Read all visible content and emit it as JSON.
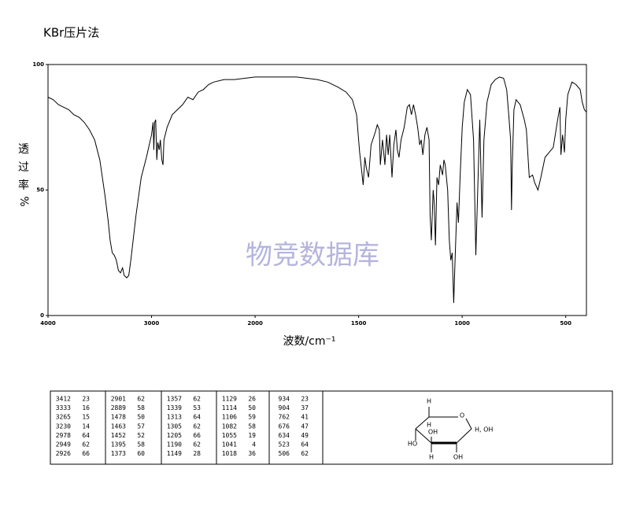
{
  "chart_data": {
    "type": "line",
    "title": "KBr压片法",
    "xlabel": "波数/cm⁻¹",
    "ylabel_chars": [
      "透",
      "过",
      "率"
    ],
    "ylabel_unit": "%",
    "watermark": "物竞数据库",
    "color": "#000000",
    "xlim": [
      4000,
      400
    ],
    "x_scale_break": 2000,
    "ylim": [
      0,
      100
    ],
    "xticks": [
      4000,
      3000,
      2000,
      1500,
      1000,
      500
    ],
    "yticks": [
      0,
      50,
      100
    ],
    "x": [
      4000,
      3950,
      3900,
      3850,
      3800,
      3750,
      3700,
      3650,
      3600,
      3550,
      3500,
      3450,
      3420,
      3400,
      3380,
      3360,
      3340,
      3320,
      3300,
      3280,
      3265,
      3240,
      3220,
      3200,
      3150,
      3100,
      3050,
      3000,
      2985,
      2978,
      2970,
      2960,
      2949,
      2940,
      2926,
      2915,
      2901,
      2889,
      2880,
      2850,
      2800,
      2750,
      2700,
      2650,
      2600,
      2550,
      2500,
      2450,
      2400,
      2300,
      2200,
      2100,
      2000,
      1900,
      1800,
      1700,
      1650,
      1600,
      1560,
      1530,
      1510,
      1495,
      1478,
      1470,
      1463,
      1452,
      1440,
      1420,
      1410,
      1400,
      1395,
      1385,
      1373,
      1365,
      1357,
      1350,
      1339,
      1330,
      1320,
      1313,
      1305,
      1295,
      1280,
      1265,
      1255,
      1245,
      1235,
      1225,
      1215,
      1205,
      1198,
      1190,
      1180,
      1170,
      1160,
      1155,
      1149,
      1140,
      1135,
      1129,
      1122,
      1114,
      1106,
      1095,
      1088,
      1082,
      1070,
      1062,
      1055,
      1048,
      1041,
      1035,
      1025,
      1018,
      1010,
      1000,
      990,
      975,
      960,
      945,
      934,
      925,
      915,
      904,
      895,
      880,
      860,
      840,
      820,
      800,
      785,
      775,
      766,
      762,
      758,
      750,
      740,
      720,
      700,
      690,
      676,
      660,
      650,
      634,
      620,
      600,
      580,
      560,
      545,
      535,
      528,
      523,
      515,
      506,
      500,
      490,
      470,
      450,
      430,
      420,
      410,
      400
    ],
    "y": [
      87,
      86,
      84,
      83,
      82,
      80,
      79,
      77,
      74,
      70,
      62,
      48,
      38,
      30,
      25,
      24,
      22,
      18,
      17,
      19,
      16,
      15,
      16,
      22,
      40,
      55,
      63,
      72,
      77,
      66,
      77,
      78,
      62,
      69,
      66,
      70,
      62,
      60,
      70,
      75,
      80,
      82,
      84,
      87,
      86,
      89,
      90,
      92,
      93,
      94,
      94,
      94.5,
      95,
      95,
      95,
      94,
      93,
      91,
      89,
      86,
      80,
      65,
      52,
      63,
      59,
      55,
      68,
      73,
      76,
      74,
      60,
      70,
      60,
      72,
      64,
      72,
      55,
      68,
      74,
      66,
      63,
      70,
      75,
      83,
      84,
      80,
      84,
      80,
      75,
      68,
      70,
      64,
      72,
      75,
      70,
      40,
      30,
      50,
      45,
      28,
      55,
      52,
      60,
      56,
      62,
      60,
      50,
      30,
      22,
      25,
      5,
      20,
      45,
      37,
      55,
      75,
      85,
      90,
      88,
      70,
      24,
      50,
      78,
      39,
      70,
      85,
      92,
      94,
      95,
      94.5,
      90,
      80,
      70,
      42,
      60,
      82,
      86,
      84,
      78,
      74,
      55,
      56,
      53,
      50,
      55,
      63,
      65,
      67,
      75,
      80,
      83,
      64,
      72,
      65,
      78,
      88,
      93,
      92,
      90,
      85,
      82,
      81
    ]
  },
  "table": {
    "rows": [
      [
        3412,
        23,
        2901,
        62,
        1357,
        62,
        1129,
        26,
        934,
        23
      ],
      [
        3333,
        16,
        2889,
        58,
        1339,
        53,
        1114,
        50,
        904,
        37
      ],
      [
        3265,
        15,
        1478,
        50,
        1313,
        64,
        1106,
        59,
        762,
        41
      ],
      [
        3230,
        14,
        1463,
        57,
        1305,
        62,
        1082,
        58,
        676,
        47
      ],
      [
        2978,
        64,
        1452,
        52,
        1205,
        66,
        1055,
        19,
        634,
        49
      ],
      [
        2949,
        62,
        1395,
        58,
        1190,
        62,
        1041,
        4,
        523,
        64
      ],
      [
        2926,
        66,
        1373,
        60,
        1149,
        28,
        1018,
        36,
        506,
        62
      ]
    ]
  },
  "structure": {
    "labels": [
      "H",
      "O",
      "H",
      "OH",
      "H, OH",
      "HO",
      "H",
      "OH"
    ]
  }
}
